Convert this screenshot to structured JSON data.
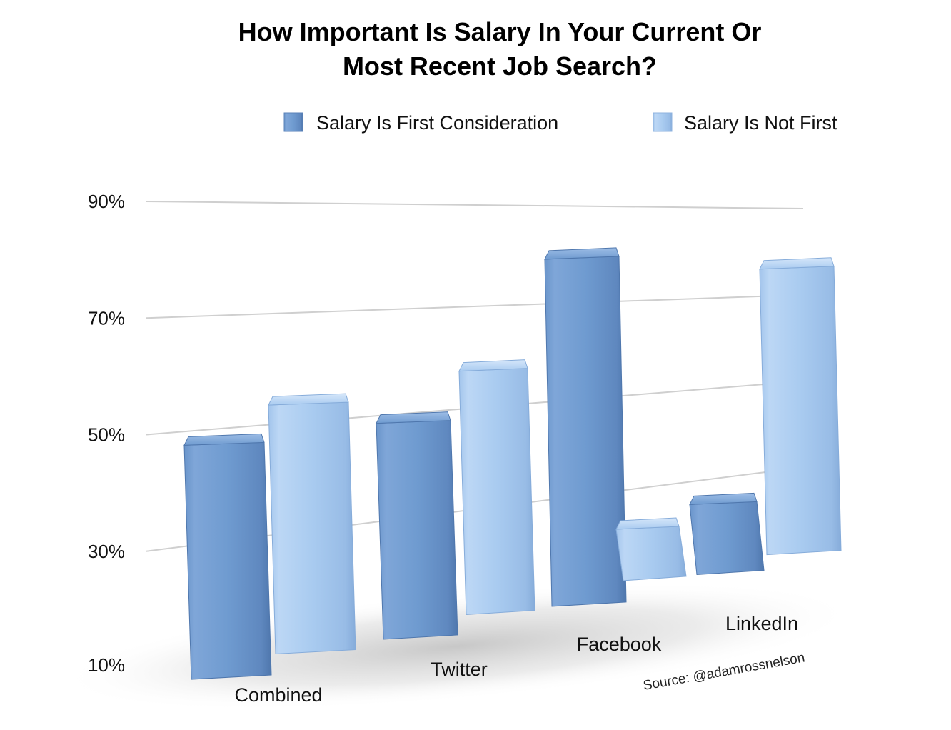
{
  "chart_data": {
    "type": "bar",
    "title": [
      "How Important Is Salary In Your Current Or",
      "Most Recent Job Search?"
    ],
    "categories": [
      "Combined",
      "Twitter",
      "Facebook",
      "LinkedIn"
    ],
    "series": [
      {
        "name": "Salary Is First Consideration",
        "color": "#6f9bd0",
        "values": [
          47,
          48,
          79,
          24
        ]
      },
      {
        "name": "Salary Is Not First",
        "color": "#a9cbf0",
        "values": [
          53,
          57,
          21,
          76
        ]
      }
    ],
    "ylim": [
      10,
      90
    ],
    "yticks": [
      "10%",
      "30%",
      "50%",
      "70%",
      "90%"
    ],
    "grid": true,
    "legend_position": "top-right",
    "source": "Source: @adamrossnelson"
  }
}
